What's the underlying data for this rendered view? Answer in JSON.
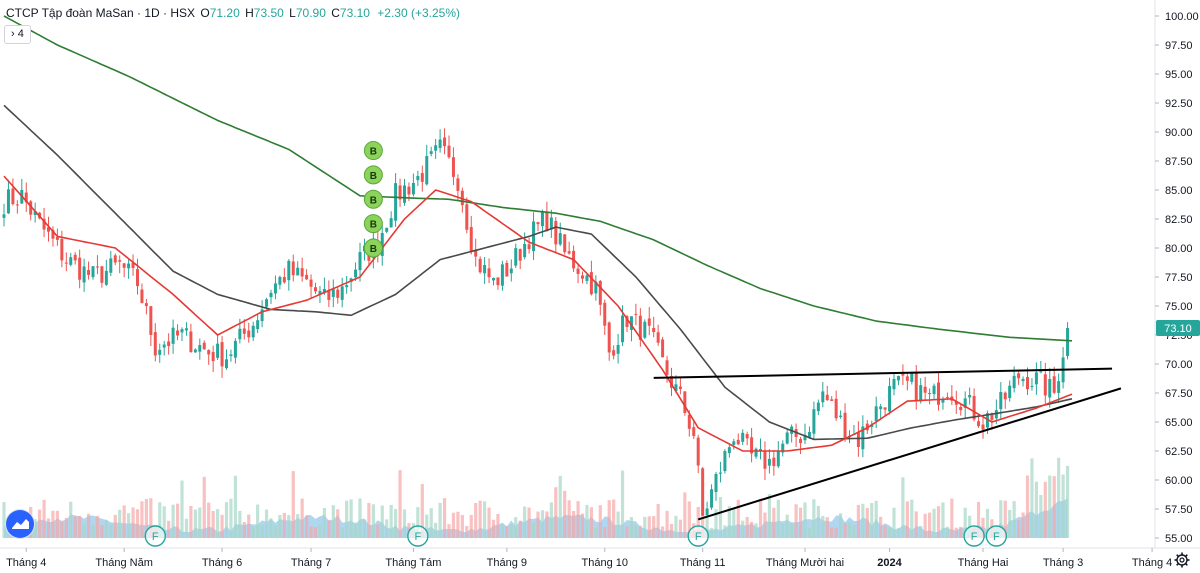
{
  "legend": {
    "symbol_name": "CTCP Tập đoàn MaSan",
    "sep1": "·",
    "interval": "1D",
    "sep2": "·",
    "exchange": "HSX",
    "o_label": "O",
    "o_value": "71.20",
    "h_label": "H",
    "h_value": "73.50",
    "l_label": "L",
    "l_value": "70.90",
    "c_label": "C",
    "c_value": "73.10",
    "change": "+2.30 (+3.25%)",
    "indicator_toggle": "› 4"
  },
  "colors": {
    "up": "#26a69a",
    "down": "#ef5350",
    "ma_red": "#e53935",
    "ma_gray": "#4a4a4a",
    "ma_green": "#2e7d32",
    "trendline": "#000000",
    "volume_area": "#6fb4e4",
    "marker_b": "#8bd35a",
    "marker_f": "#26a69a"
  },
  "chart_data": {
    "type": "candlestick",
    "title": "CTCP Tập đoàn MaSan · 1D · HSX",
    "y_ticks": [
      "100.00",
      "97.50",
      "95.00",
      "92.50",
      "90.00",
      "87.50",
      "85.00",
      "82.50",
      "80.00",
      "77.50",
      "75.00",
      "72.50",
      "70.00",
      "67.50",
      "65.00",
      "62.50",
      "60.00",
      "57.50",
      "55.00"
    ],
    "y_range": [
      53.5,
      101
    ],
    "x_ticks": [
      "Tháng 4",
      "Tháng Năm",
      "Tháng 6",
      "Tháng 7",
      "Tháng Tám",
      "Tháng 9",
      "Tháng 10",
      "Tháng 11",
      "Tháng Mười hai",
      "2024",
      "Tháng Hai",
      "Tháng 3",
      "Tháng 4"
    ],
    "x_tick_index": [
      5,
      27,
      49,
      69,
      92,
      113,
      135,
      157,
      180,
      199,
      220,
      238,
      258
    ],
    "bars": 240,
    "last_close": 73.1,
    "ma_fast": [
      [
        0,
        86.2
      ],
      [
        12,
        81
      ],
      [
        25,
        80
      ],
      [
        38,
        76
      ],
      [
        48,
        72.5
      ],
      [
        58,
        74.5
      ],
      [
        68,
        75.5
      ],
      [
        80,
        77.5
      ],
      [
        90,
        82.5
      ],
      [
        97,
        85
      ],
      [
        105,
        84
      ],
      [
        118,
        80.5
      ],
      [
        128,
        79
      ],
      [
        138,
        75
      ],
      [
        148,
        69.5
      ],
      [
        156,
        64.5
      ],
      [
        166,
        62.5
      ],
      [
        176,
        62.5
      ],
      [
        186,
        63
      ],
      [
        194,
        64.5
      ],
      [
        203,
        66.8
      ],
      [
        213,
        67
      ],
      [
        222,
        65
      ],
      [
        232,
        66.2
      ],
      [
        240,
        67.4
      ]
    ],
    "ma_mid": [
      [
        0,
        92.3
      ],
      [
        12,
        88
      ],
      [
        25,
        83
      ],
      [
        38,
        78
      ],
      [
        48,
        76
      ],
      [
        60,
        74.7
      ],
      [
        70,
        74.5
      ],
      [
        78,
        74.2
      ],
      [
        88,
        76
      ],
      [
        98,
        79
      ],
      [
        108,
        80
      ],
      [
        118,
        81
      ],
      [
        124,
        81.8
      ],
      [
        132,
        81.2
      ],
      [
        142,
        77.5
      ],
      [
        152,
        73
      ],
      [
        162,
        68
      ],
      [
        172,
        65
      ],
      [
        182,
        63.5
      ],
      [
        194,
        63.6
      ],
      [
        204,
        64.5
      ],
      [
        214,
        65.2
      ],
      [
        224,
        65.8
      ],
      [
        232,
        66.3
      ],
      [
        240,
        67
      ]
    ],
    "ma_long": [
      [
        0,
        100
      ],
      [
        12,
        97.5
      ],
      [
        28,
        94.8
      ],
      [
        48,
        91
      ],
      [
        64,
        88.5
      ],
      [
        80,
        84.5
      ],
      [
        92,
        84.3
      ],
      [
        100,
        84.2
      ],
      [
        112,
        83.5
      ],
      [
        124,
        83
      ],
      [
        134,
        82.3
      ],
      [
        146,
        80.7
      ],
      [
        158,
        78.5
      ],
      [
        170,
        76.5
      ],
      [
        182,
        75
      ],
      [
        196,
        73.7
      ],
      [
        210,
        73
      ],
      [
        226,
        72.3
      ],
      [
        240,
        72
      ]
    ],
    "trendlines": [
      {
        "points": [
          [
            146,
            68.8
          ],
          [
            249,
            69.6
          ]
        ]
      },
      {
        "points": [
          [
            156,
            56.6
          ],
          [
            251,
            67.9
          ]
        ]
      }
    ],
    "markers": [
      {
        "label": "B",
        "bar": 83,
        "price": 88.4
      },
      {
        "label": "B",
        "bar": 83,
        "price": 86.3
      },
      {
        "label": "B",
        "bar": 83,
        "price": 84.2
      },
      {
        "label": "B",
        "bar": 83,
        "price": 82.1
      },
      {
        "label": "B",
        "bar": 83,
        "price": 80.0
      }
    ],
    "events": [
      {
        "label": "F",
        "bar": 34
      },
      {
        "label": "F",
        "bar": 93
      },
      {
        "label": "F",
        "bar": 156
      },
      {
        "label": "F",
        "bar": 218
      },
      {
        "label": "F",
        "bar": 223
      }
    ]
  }
}
